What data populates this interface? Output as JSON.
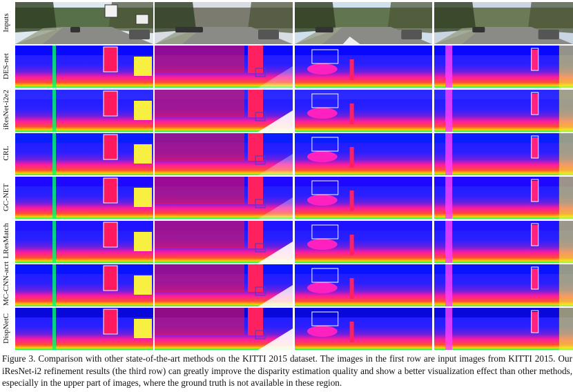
{
  "figure": {
    "rows": [
      {
        "label": "Inputs",
        "kind": "input"
      },
      {
        "label": "DES-net",
        "kind": "disparity"
      },
      {
        "label": "iResNet-i2e2",
        "kind": "disparity"
      },
      {
        "label": "CRL",
        "kind": "disparity"
      },
      {
        "label": "GC-NET",
        "kind": "disparity"
      },
      {
        "label": "LResMatch",
        "kind": "disparity"
      },
      {
        "label": "MC-CNN-acrt",
        "kind": "disparity"
      },
      {
        "label": "DispNetC",
        "kind": "disparity"
      }
    ],
    "columns": 4,
    "colors": {
      "disparity_far": "#1a1aff",
      "disparity_mid": "#ff1aa0",
      "disparity_near": "#00ff66",
      "highlight_white": "#ffffff",
      "highlight_blue": "#3344cc"
    }
  },
  "caption": {
    "text": "Figure 3. Comparison with other state-of-the-art methods on the KITTI 2015 dataset. The images in the first row are input images from KITTI 2015. Our iResNet-i2 refinement results (the third row) can greatly improve the disparity estimation quality and show a better visualization effect than other methods, especially in the upper part of images, where the ground truth is not available in these region."
  }
}
